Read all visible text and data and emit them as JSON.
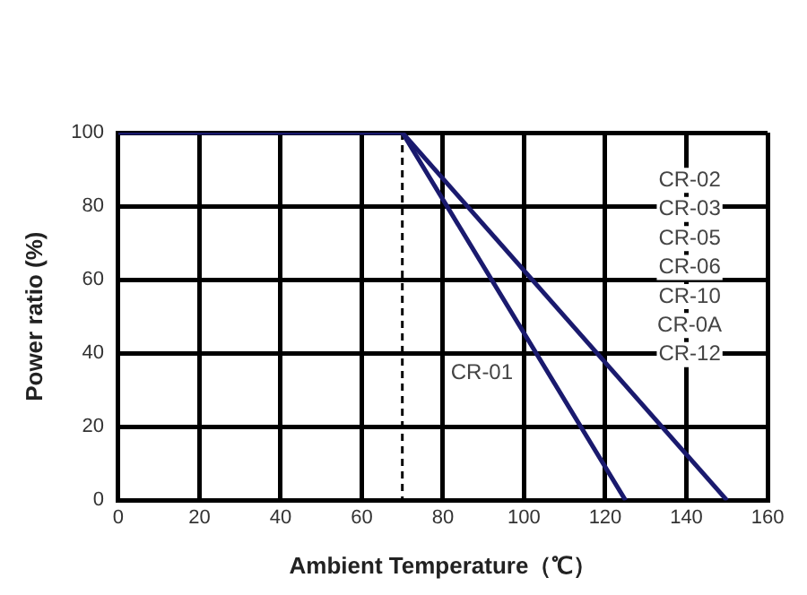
{
  "chart_data": {
    "type": "line",
    "xlabel": "Ambient Temperature（℃）",
    "ylabel": "Power ratio (%)",
    "series": [
      {
        "color": "#1a1a6e",
        "x": [
          0,
          70,
          125
        ],
        "values": [
          100,
          100,
          0
        ]
      },
      {
        "color": "#1a1a6e",
        "x": [
          70,
          150
        ],
        "values": [
          100,
          0
        ]
      }
    ],
    "xlim": [
      0,
      160
    ],
    "xticks": [
      0,
      20,
      40,
      60,
      80,
      100,
      120,
      140,
      160
    ],
    "ylim": [
      0,
      100
    ],
    "yticks": [
      0,
      20,
      40,
      60,
      80,
      100
    ],
    "grid": true,
    "marker": "none",
    "line_style": "solid",
    "ref_lines": [
      {
        "axis": "x",
        "value": 70,
        "color": "#000000",
        "line_style": "dashed"
      }
    ],
    "annotations": [
      "CR-01",
      "CR-02",
      "CR-03",
      "CR-05",
      "CR-06",
      "CR-10",
      "CR-0A",
      "CR-12"
    ]
  }
}
